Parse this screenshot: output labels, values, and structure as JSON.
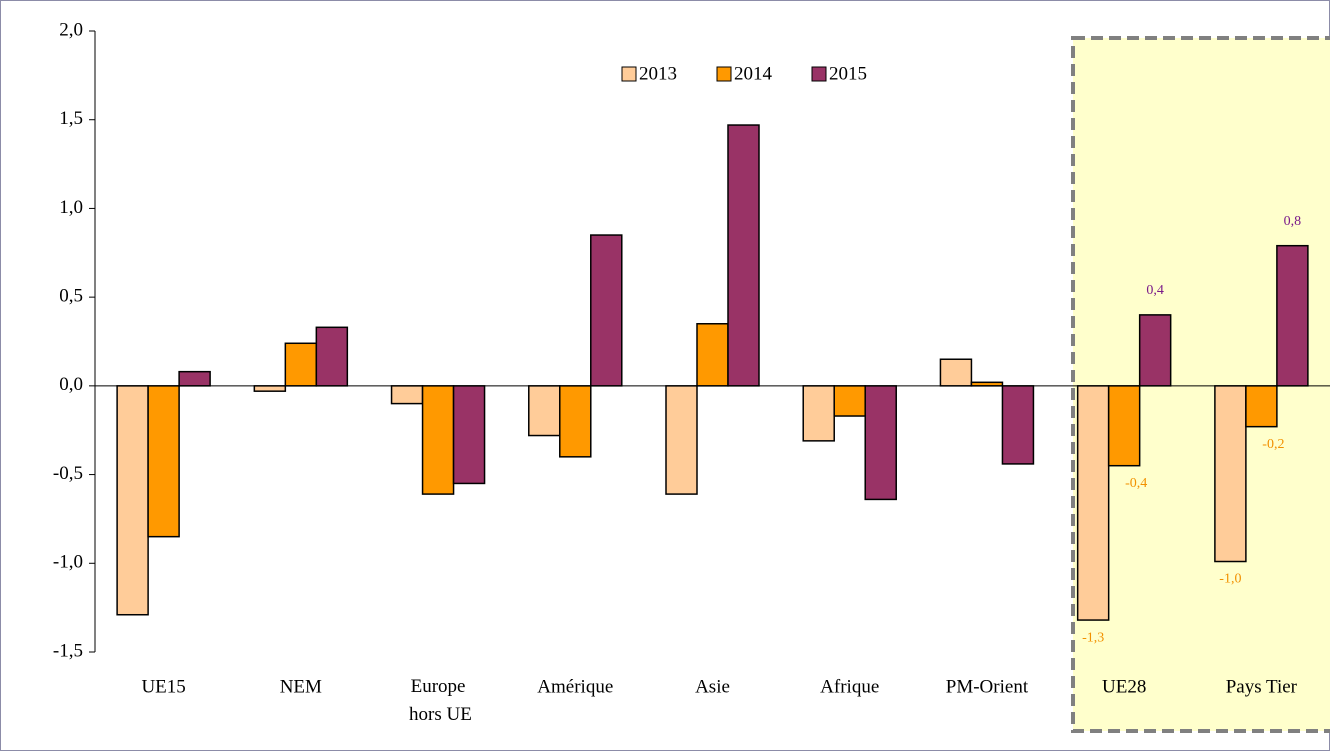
{
  "chart_data": {
    "type": "bar",
    "categories": [
      "UE15",
      "NEM",
      "Europe hors UE",
      "Amérique",
      "Asie",
      "Afrique",
      "PM-Orient",
      "UE28",
      "Pays Tier"
    ],
    "series": [
      {
        "name": "2013",
        "color": "#ffcc99",
        "label_color": "#f29100",
        "values": [
          -1.29,
          -0.03,
          -0.1,
          -0.28,
          -0.61,
          -0.31,
          0.15,
          -1.32,
          -0.99
        ],
        "value_labels": [
          null,
          null,
          null,
          null,
          null,
          null,
          null,
          "-1,3",
          "-1,0"
        ]
      },
      {
        "name": "2014",
        "color": "#ff9900",
        "label_color": "#f29100",
        "values": [
          -0.85,
          0.24,
          -0.61,
          -0.4,
          0.35,
          -0.17,
          0.02,
          -0.45,
          -0.23
        ],
        "value_labels": [
          null,
          null,
          null,
          null,
          null,
          null,
          null,
          "-0,4",
          "-0,2"
        ]
      },
      {
        "name": "2015",
        "color": "#993366",
        "label_color": "#7a1a8a",
        "values": [
          0.08,
          0.33,
          -0.55,
          0.85,
          1.47,
          -0.64,
          -0.44,
          0.4,
          0.79
        ],
        "value_labels": [
          null,
          null,
          null,
          null,
          null,
          null,
          null,
          "0,4",
          "0,8"
        ]
      }
    ],
    "ylim": [
      -1.5,
      2.0
    ],
    "yticks": [
      {
        "value": -1.5,
        "label": "-1,5"
      },
      {
        "value": -1.0,
        "label": "-1,0"
      },
      {
        "value": -0.5,
        "label": "-0,5"
      },
      {
        "value": 0,
        "label": "0,0"
      },
      {
        "value": 0.5,
        "label": "0,5"
      },
      {
        "value": 1.0,
        "label": "1,0"
      },
      {
        "value": 1.5,
        "label": "1,5"
      },
      {
        "value": 2.0,
        "label": "2,0"
      }
    ],
    "legend": "top"
  }
}
